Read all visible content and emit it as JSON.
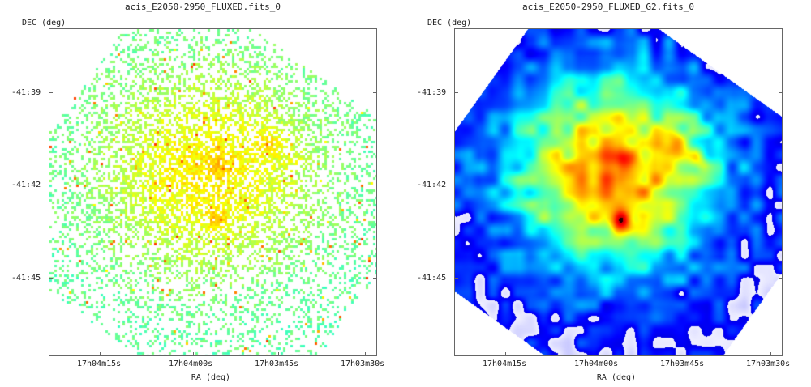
{
  "panels": [
    {
      "title": "acis_E2050-2950_FLUXED.fits_0",
      "ylabel": "DEC (deg)",
      "xlabel": "RA (deg)",
      "yticks": [
        "-41:39",
        "-41:42",
        "-41:45"
      ],
      "xticks": [
        "17h04m15s",
        "17h04m00s",
        "17h03m45s",
        "17h03m30s"
      ],
      "style": "sparse-pixel"
    },
    {
      "title": "acis_E2050-2950_FLUXED_G2.fits_0",
      "ylabel": "DEC (deg)",
      "xlabel": "RA (deg)",
      "yticks": [
        "-41:39",
        "-41:42",
        "-41:45"
      ],
      "xticks": [
        "17h04m15s",
        "17h04m00s",
        "17h03m45s",
        "17h03m30s"
      ],
      "style": "smoothed"
    }
  ]
}
